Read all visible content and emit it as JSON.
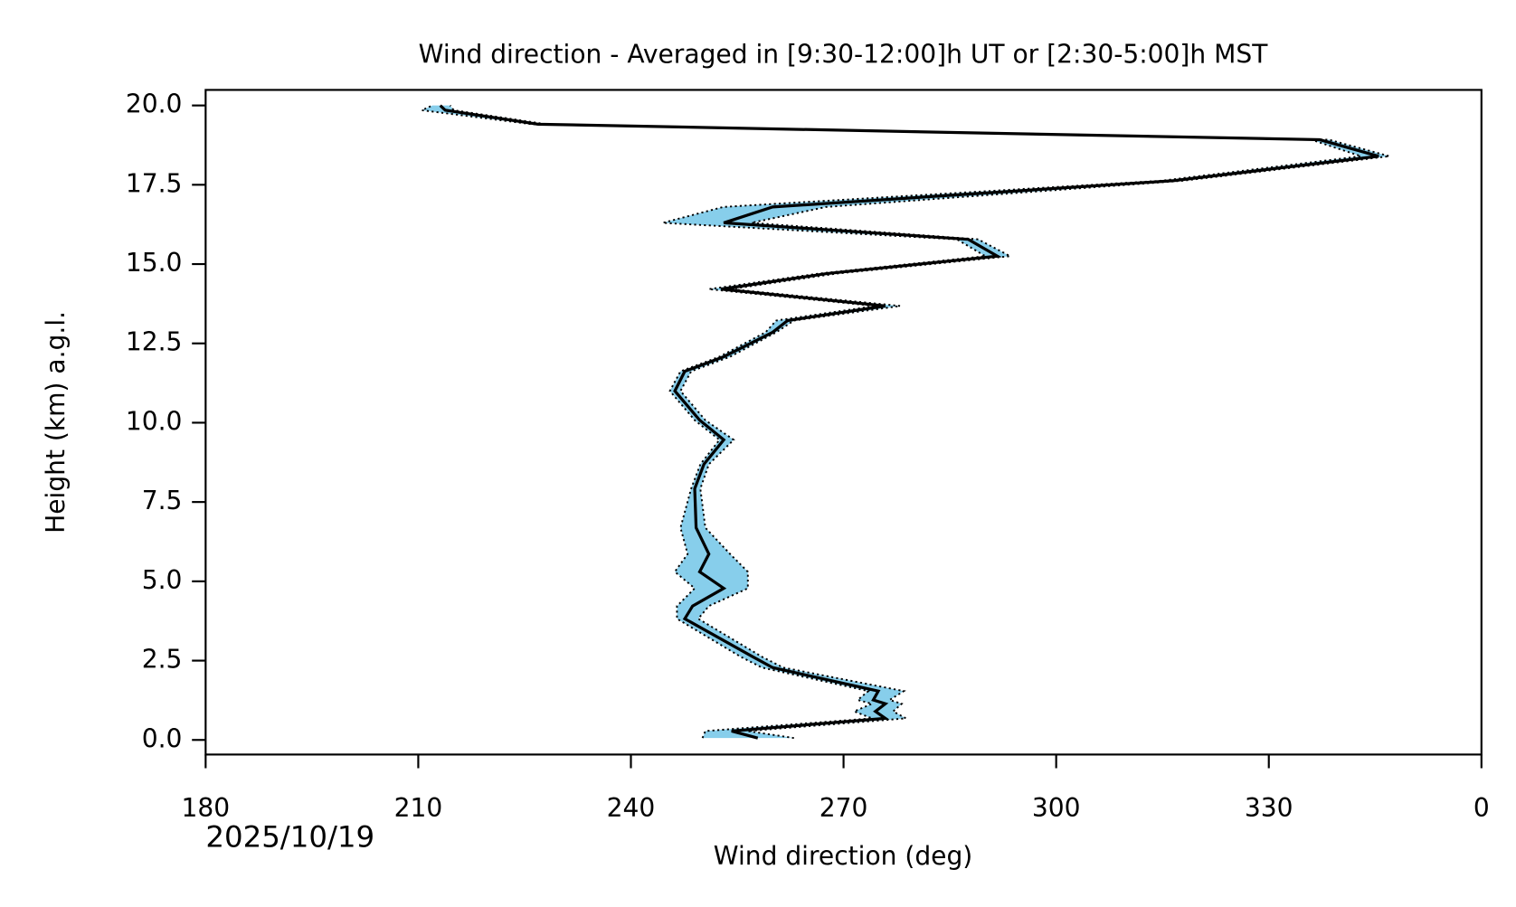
{
  "chart_data": {
    "type": "profile",
    "title": "Wind direction - Averaged in [9:30-12:00]h UT or [2:30-5:00]h MST",
    "x_label": "Wind direction (deg)",
    "y_label": "Height (km) a.g.l.",
    "date": "2025/10/19",
    "heights": [
      0.06,
      0.28,
      0.68,
      0.9,
      1.14,
      1.26,
      1.54,
      2.28,
      2.62,
      3.82,
      4.22,
      4.78,
      5.3,
      5.86,
      6.69,
      7.92,
      8.69,
      9.46,
      10.08,
      11.0,
      11.62,
      12.08,
      12.85,
      13.22,
      13.68,
      14.21,
      14.7,
      15.25,
      15.78,
      16.3,
      16.8,
      17.63,
      18.4,
      18.92,
      19.41,
      19.85,
      20.0
    ],
    "values": [
      257.9,
      254.2,
      275.9,
      274.5,
      275.9,
      274.2,
      274.9,
      260.0,
      257.2,
      247.6,
      248.7,
      253.1,
      249.7,
      251.0,
      249.2,
      249.0,
      250.3,
      253.1,
      249.7,
      246.2,
      247.6,
      253.1,
      260.0,
      262.1,
      275.9,
      252.7,
      267.6,
      291.7,
      287.6,
      253.1,
      260.0,
      316.6,
      345.5,
      337.2,
      226.9,
      213.8,
      213.1
    ],
    "lower": [
      250.1,
      250.5,
      274.0,
      271.5,
      274.0,
      272.0,
      273.5,
      258.5,
      255.5,
      246.5,
      246.5,
      249.0,
      246.2,
      248.0,
      247.0,
      248.5,
      249.8,
      252.5,
      249.0,
      245.5,
      247.0,
      252.5,
      259.0,
      260.5,
      274.5,
      251.0,
      266.5,
      290.0,
      286.0,
      244.5,
      253.0,
      315.0,
      343.0,
      336.0,
      226.0,
      210.5,
      212.0
    ],
    "upper": [
      263.0,
      256.5,
      278.8,
      277.0,
      278.2,
      276.5,
      278.5,
      261.5,
      258.5,
      249.5,
      251.0,
      256.5,
      256.5,
      254.0,
      250.5,
      249.8,
      251.0,
      254.5,
      250.5,
      247.0,
      248.5,
      254.0,
      260.5,
      263.0,
      278.0,
      254.0,
      269.0,
      293.5,
      289.0,
      257.0,
      267.5,
      318.0,
      347.0,
      338.5,
      228.0,
      215.0,
      214.5
    ],
    "color": "#000000",
    "band_color": "#87ceeb",
    "xlim": [
      180,
      360
    ],
    "xticks": [
      180,
      210,
      240,
      270,
      300,
      330,
      {
        "value": 360,
        "label": "0"
      }
    ],
    "ylim": [
      -0.46,
      20.49
    ],
    "yticks": [
      {
        "value": 0,
        "label": "0.0"
      },
      2.5,
      {
        "value": 5,
        "label": "5.0"
      },
      7.5,
      {
        "value": 10,
        "label": "10.0"
      },
      12.5,
      {
        "value": 15,
        "label": "15.0"
      },
      17.5,
      {
        "value": 20,
        "label": "20.0"
      }
    ]
  }
}
